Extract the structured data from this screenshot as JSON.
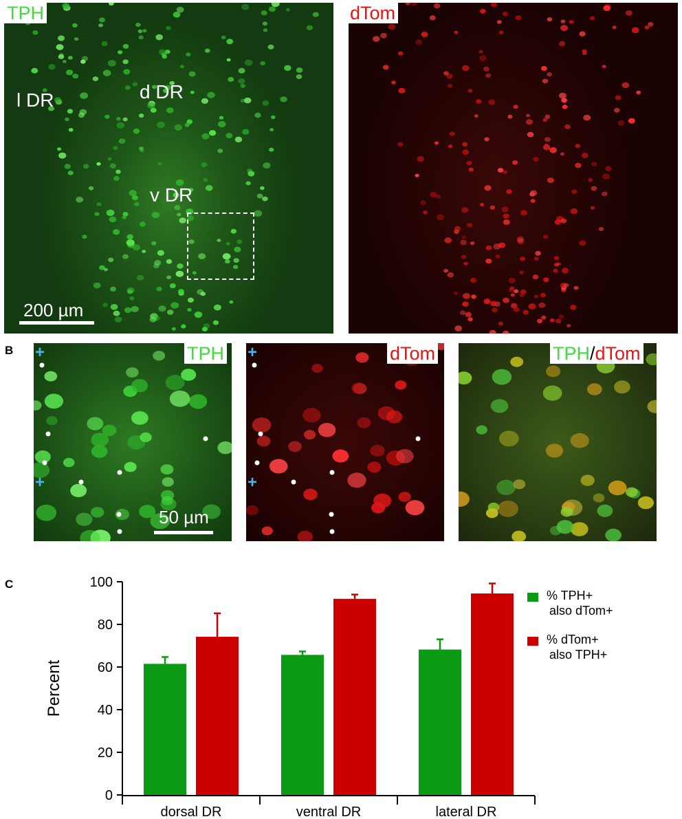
{
  "panels": {
    "A": {
      "letter": "A",
      "left_label": "TPH",
      "right_label": "dTom",
      "regions": [
        "l DR",
        "d DR",
        "v DR"
      ],
      "scale_bar": "200 µm"
    },
    "B": {
      "letter": "B",
      "labels": [
        "TPH",
        "dTom"
      ],
      "merge_label_a": "TPH",
      "merge_sep": "/",
      "merge_label_b": "dTom",
      "scale_bar": "50 µm",
      "marker": "+"
    },
    "C": {
      "letter": "C"
    }
  },
  "colors": {
    "green": "#0a9a14",
    "red": "#cc0000",
    "marker_blue": "#4ab4f0"
  },
  "chart_data": {
    "type": "bar",
    "categories": [
      "dorsal DR",
      "ventral DR",
      "lateral DR"
    ],
    "series": [
      {
        "name": "% TPH+ also dTom+",
        "legend_lines": [
          "% TPH+",
          "also dTom+"
        ],
        "color": "#0a9a14",
        "values": [
          61.5,
          65.7,
          68.2
        ],
        "errors": [
          3.2,
          1.6,
          4.8
        ]
      },
      {
        "name": "% dTom+ also TPH+",
        "legend_lines": [
          "% dTom+",
          "also TPH+"
        ],
        "color": "#cc0000",
        "values": [
          74.2,
          92.0,
          94.5
        ],
        "errors": [
          11.0,
          2.0,
          4.7
        ]
      }
    ],
    "ylabel": "Percent",
    "ylim": [
      0,
      100
    ],
    "yticks": [
      0,
      20,
      40,
      60,
      80,
      100
    ],
    "legend_position": "right"
  }
}
